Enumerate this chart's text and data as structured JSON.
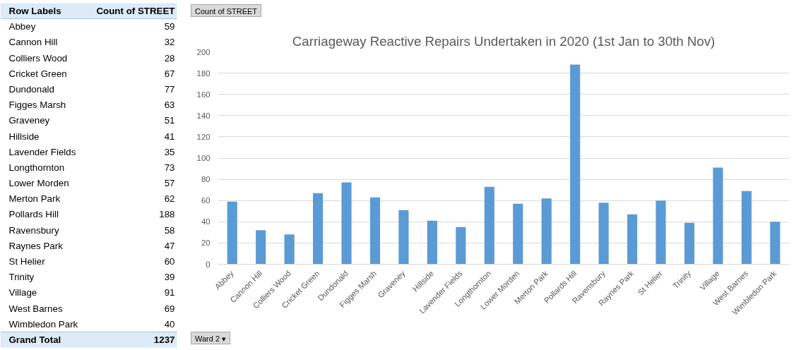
{
  "chart_data": {
    "type": "bar",
    "title": "Carriageway Reactive Repairs Undertaken in 2020 (1st Jan to 30th Nov)",
    "categories": [
      "Abbey",
      "Cannon Hill",
      "Colliers Wood",
      "Cricket Green",
      "Dundonald",
      "Figges Marsh",
      "Graveney",
      "Hillside",
      "Lavender Fields",
      "Longthornton",
      "Lower Morden",
      "Merton Park",
      "Pollards Hill",
      "Ravensbury",
      "Raynes Park",
      "St Helier",
      "Trinity",
      "Village",
      "West Barnes",
      "Wimbledon Park"
    ],
    "values": [
      59,
      32,
      28,
      67,
      77,
      63,
      51,
      41,
      35,
      73,
      57,
      62,
      188,
      58,
      47,
      60,
      39,
      91,
      69,
      40
    ],
    "color": "#5b9bd5",
    "ylim": [
      0,
      200
    ],
    "yticks": [
      0,
      20,
      40,
      60,
      80,
      100,
      120,
      140,
      160,
      180,
      200
    ],
    "grid": "y",
    "annotations": [
      "Count of STREET",
      "Ward 2 ▾",
      "Row Labels",
      "Count of STREET",
      "Abbey",
      "59",
      "Cannon Hill",
      "32",
      "Colliers Wood",
      "28",
      "Cricket Green",
      "67",
      "Dundonald",
      "77",
      "Figges Marsh",
      "63",
      "Graveney",
      "51",
      "Hillside",
      "41",
      "Lavender Fields",
      "35",
      "Longthornton",
      "73",
      "Lower Morden",
      "57",
      "Merton Park",
      "62",
      "Pollards Hill",
      "188",
      "Ravensbury",
      "58",
      "Raynes Park",
      "47",
      "St Helier",
      "60",
      "Trinity",
      "39",
      "Village",
      "91",
      "West Barnes",
      "69",
      "Wimbledon Park",
      "40",
      "Grand Total",
      "1237"
    ]
  }
}
